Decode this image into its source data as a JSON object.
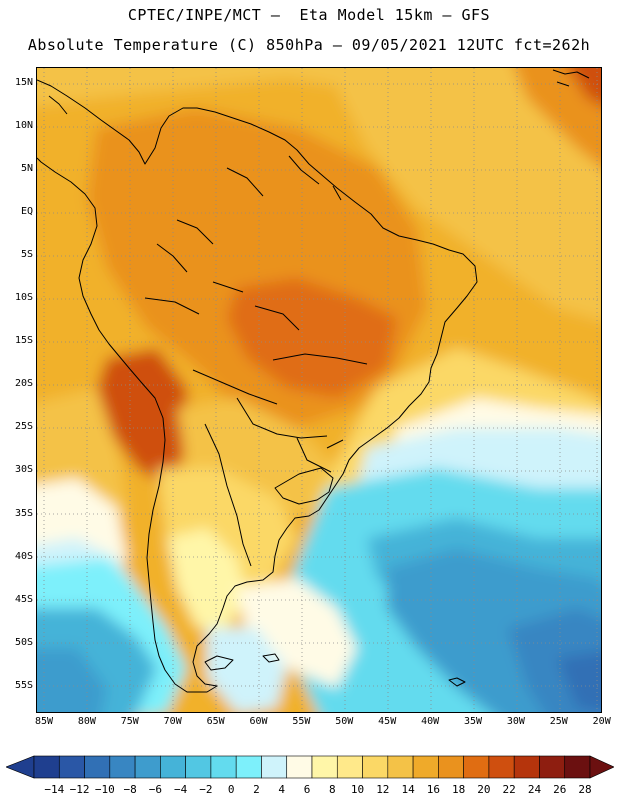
{
  "header": {
    "line1": "CPTEC/INPE/MCT –  Eta Model 15km – GFS",
    "line2": "Absolute Temperature (C) 850hPa – 09/05/2021 12UTC fct=262h"
  },
  "map": {
    "lat_labels": [
      "15N",
      "10N",
      "5N",
      "EQ",
      "5S",
      "10S",
      "15S",
      "20S",
      "25S",
      "30S",
      "35S",
      "40S",
      "45S",
      "50S",
      "55S"
    ],
    "lon_labels": [
      "85W",
      "80W",
      "75W",
      "70W",
      "65W",
      "60W",
      "55W",
      "50W",
      "45W",
      "40W",
      "35W",
      "30W",
      "25W",
      "20W"
    ]
  },
  "colorbar": {
    "labels": [
      "-14",
      "-12",
      "-10",
      "-8",
      "-6",
      "-4",
      "-2",
      "0",
      "2",
      "4",
      "6",
      "8",
      "10",
      "12",
      "14",
      "16",
      "18",
      "20",
      "22",
      "24",
      "26",
      "28"
    ],
    "colors": [
      "#1f3f8f",
      "#2a57a6",
      "#3170b5",
      "#3886c2",
      "#3e9ccd",
      "#45b3d8",
      "#52c7e3",
      "#63dbee",
      "#7df0fb",
      "#cff3fb",
      "#fffbe6",
      "#fff6a8",
      "#ffe98a",
      "#fbd866",
      "#f4c247",
      "#efaa2a",
      "#ea921e",
      "#e06d12",
      "#cf4f0f",
      "#b5340c",
      "#8e1e10",
      "#6b1010"
    ]
  }
}
